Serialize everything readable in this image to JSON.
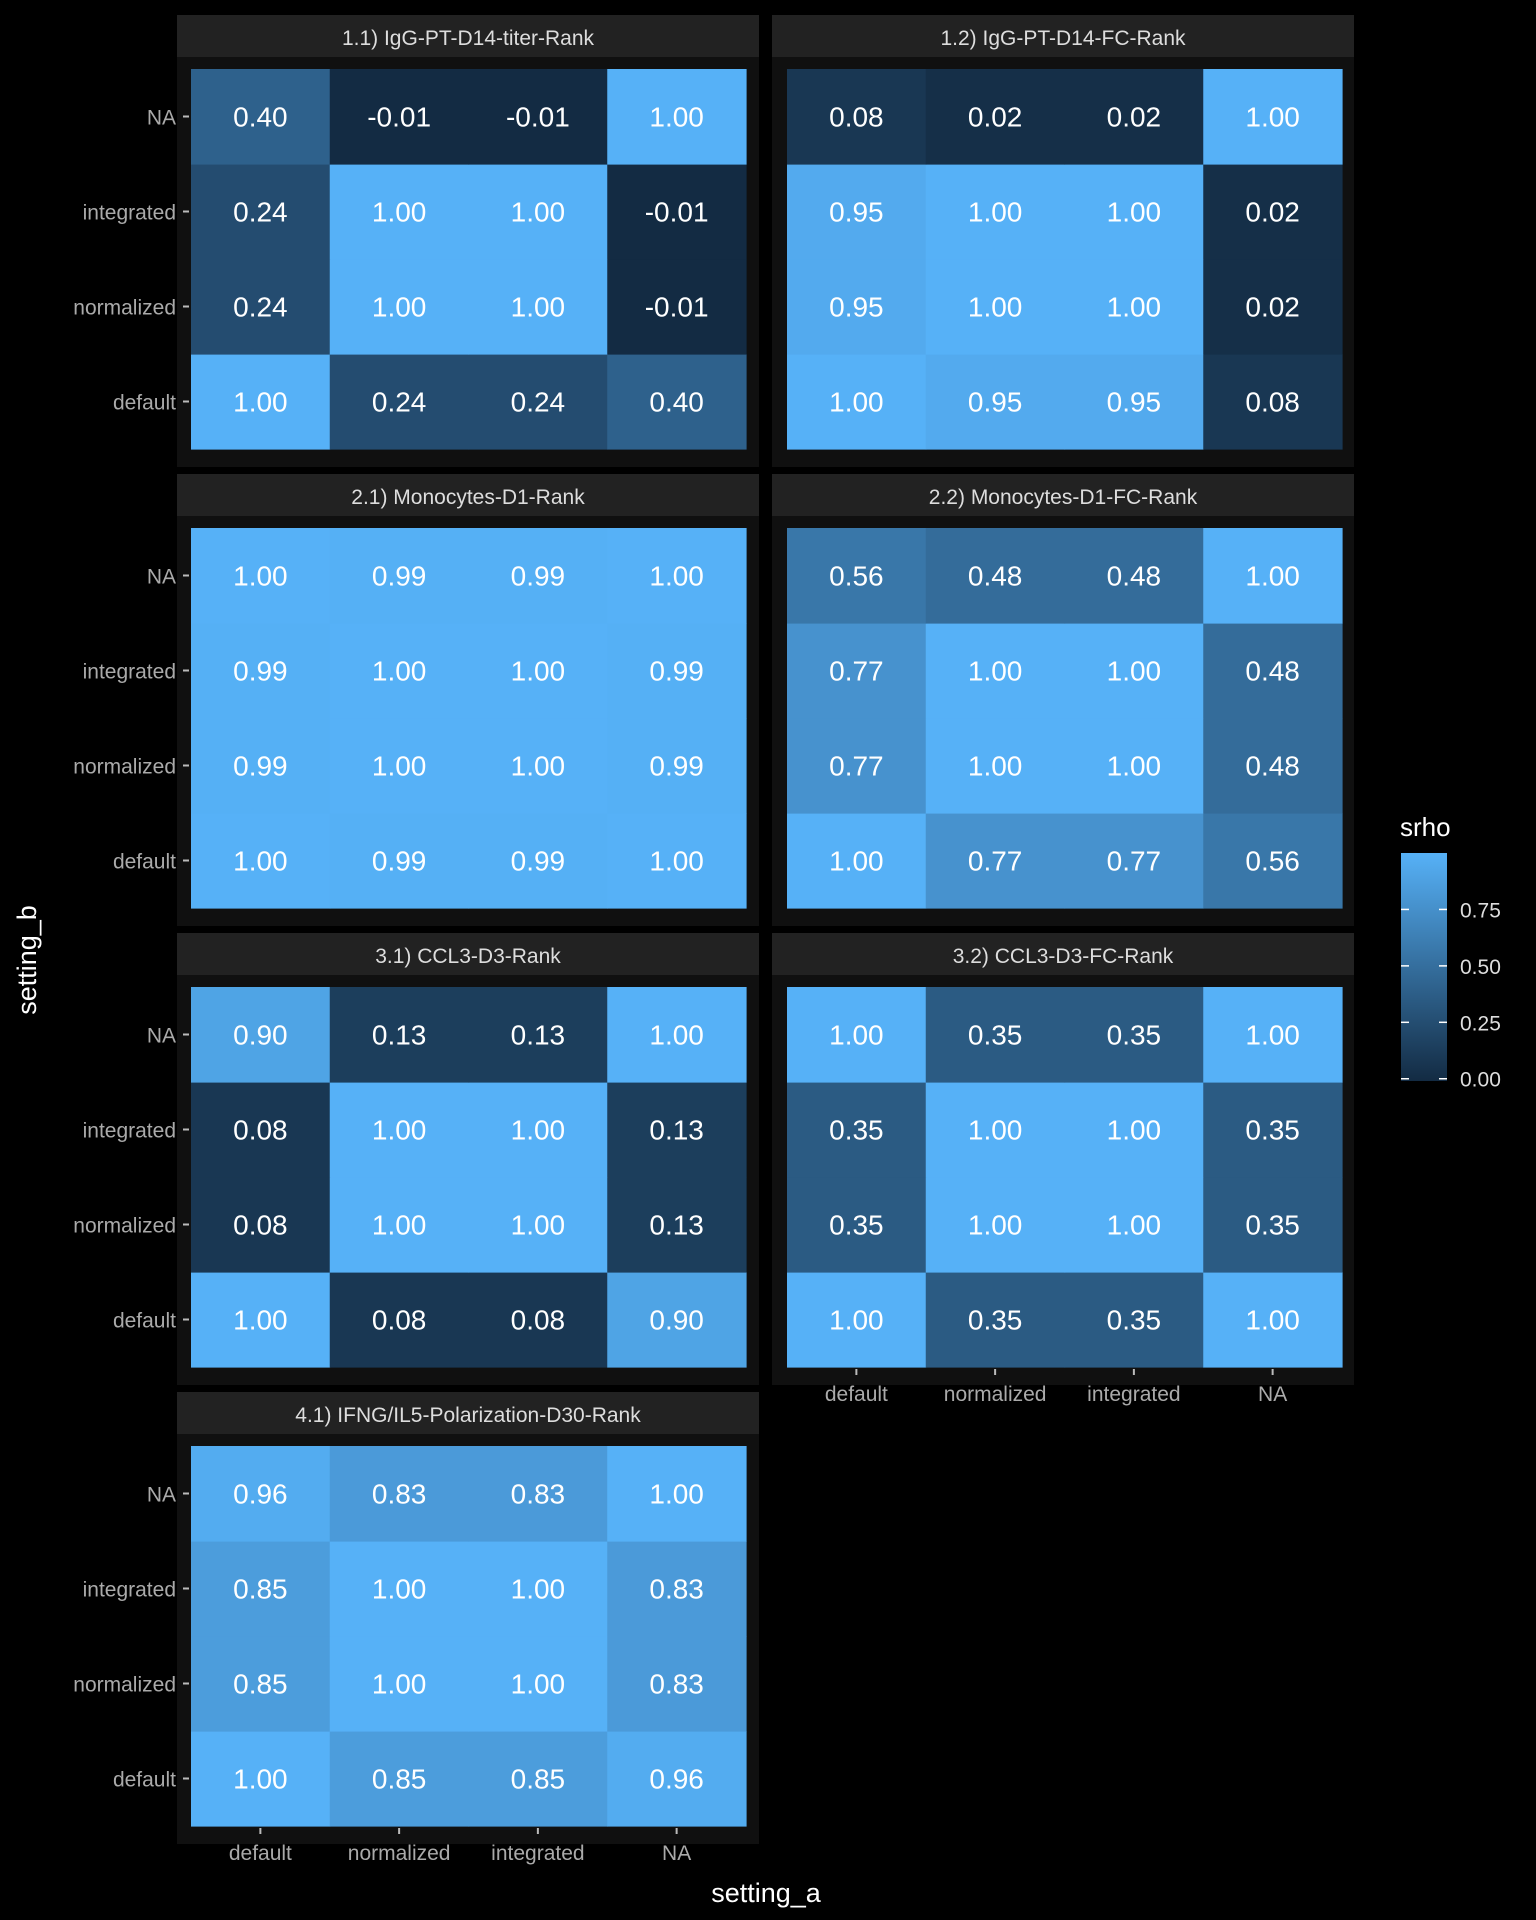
{
  "chart_data": {
    "type": "heatmap",
    "xlabel": "setting_a",
    "ylabel": "setting_b",
    "x_categories": [
      "default",
      "normalized",
      "integrated",
      "NA"
    ],
    "y_categories": [
      "default",
      "normalized",
      "integrated",
      "NA"
    ],
    "legend": {
      "title": "srho",
      "position": "right",
      "range": [
        -0.01,
        1.0
      ],
      "ticks": [
        0.0,
        0.25,
        0.5,
        0.75
      ],
      "tick_labels": [
        "0.00",
        "0.25",
        "0.50",
        "0.75"
      ],
      "low_color": "#132B43",
      "high_color": "#56B1F7"
    },
    "panels": [
      {
        "title": "1.1) IgG-PT-D14-titer-Rank",
        "rows": {
          "NA": [
            0.4,
            -0.01,
            -0.01,
            1.0
          ],
          "integrated": [
            0.24,
            1.0,
            1.0,
            -0.01
          ],
          "normalized": [
            0.24,
            1.0,
            1.0,
            -0.01
          ],
          "default": [
            1.0,
            0.24,
            0.24,
            0.4
          ]
        }
      },
      {
        "title": "1.2) IgG-PT-D14-FC-Rank",
        "rows": {
          "NA": [
            0.08,
            0.02,
            0.02,
            1.0
          ],
          "integrated": [
            0.95,
            1.0,
            1.0,
            0.02
          ],
          "normalized": [
            0.95,
            1.0,
            1.0,
            0.02
          ],
          "default": [
            1.0,
            0.95,
            0.95,
            0.08
          ]
        }
      },
      {
        "title": "2.1) Monocytes-D1-Rank",
        "rows": {
          "NA": [
            1.0,
            0.99,
            0.99,
            1.0
          ],
          "integrated": [
            0.99,
            1.0,
            1.0,
            0.99
          ],
          "normalized": [
            0.99,
            1.0,
            1.0,
            0.99
          ],
          "default": [
            1.0,
            0.99,
            0.99,
            1.0
          ]
        }
      },
      {
        "title": "2.2) Monocytes-D1-FC-Rank",
        "rows": {
          "NA": [
            0.56,
            0.48,
            0.48,
            1.0
          ],
          "integrated": [
            0.77,
            1.0,
            1.0,
            0.48
          ],
          "normalized": [
            0.77,
            1.0,
            1.0,
            0.48
          ],
          "default": [
            1.0,
            0.77,
            0.77,
            0.56
          ]
        }
      },
      {
        "title": "3.1) CCL3-D3-Rank",
        "rows": {
          "NA": [
            0.9,
            0.13,
            0.13,
            1.0
          ],
          "integrated": [
            0.08,
            1.0,
            1.0,
            0.13
          ],
          "normalized": [
            0.08,
            1.0,
            1.0,
            0.13
          ],
          "default": [
            1.0,
            0.08,
            0.08,
            0.9
          ]
        }
      },
      {
        "title": "3.2) CCL3-D3-FC-Rank",
        "rows": {
          "NA": [
            1.0,
            0.35,
            0.35,
            1.0
          ],
          "integrated": [
            0.35,
            1.0,
            1.0,
            0.35
          ],
          "normalized": [
            0.35,
            1.0,
            1.0,
            0.35
          ],
          "default": [
            1.0,
            0.35,
            0.35,
            1.0
          ]
        }
      },
      {
        "title": "4.1) IFNG/IL5-Polarization-D30-Rank",
        "rows": {
          "NA": [
            0.96,
            0.83,
            0.83,
            1.0
          ],
          "integrated": [
            0.85,
            1.0,
            1.0,
            0.83
          ],
          "normalized": [
            0.85,
            1.0,
            1.0,
            0.83
          ],
          "default": [
            1.0,
            0.85,
            0.85,
            0.96
          ]
        }
      }
    ]
  }
}
